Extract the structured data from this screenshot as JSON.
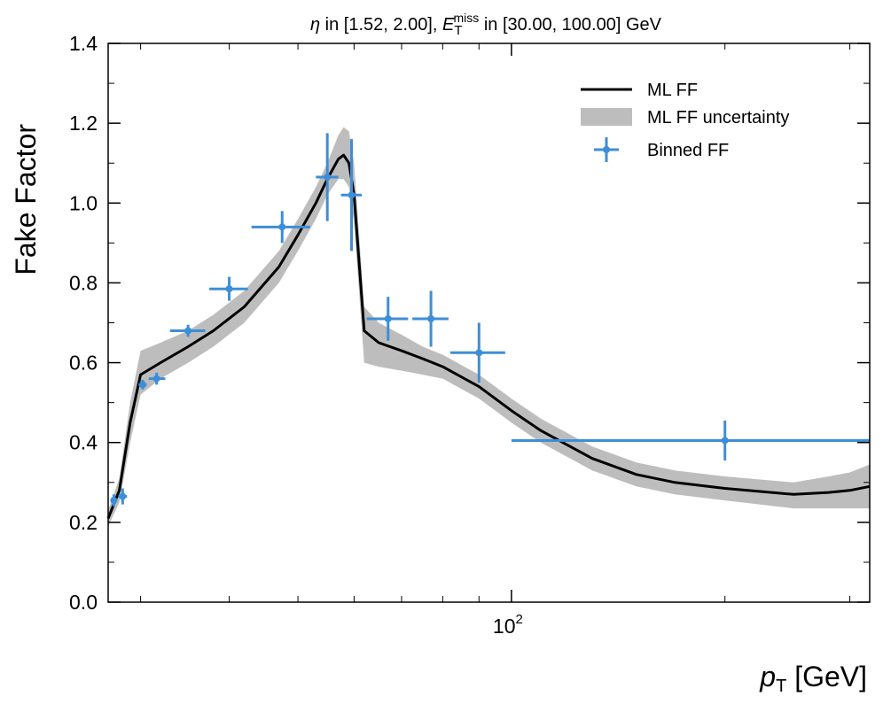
{
  "chart_data": {
    "type": "line",
    "title": {
      "eta_symbol": "η",
      "eta_range_text": " in [1.52, 2.00], ",
      "met_symbol": "E",
      "met_subscript": "T",
      "met_superscript": "miss",
      "met_range_text": " in [30.00, 100.00] GeV"
    },
    "xlabel": {
      "symbol": "p",
      "subscript": "T",
      "unit": " [GeV]"
    },
    "ylabel": "Fake Factor",
    "xscale": "log",
    "xlim": [
      27,
      320
    ],
    "ylim": [
      0.0,
      1.4
    ],
    "y_ticks": [
      "0.0",
      "0.2",
      "0.4",
      "0.6",
      "0.8",
      "1.0",
      "1.2",
      "1.4"
    ],
    "x_major_tick": {
      "base": "10",
      "exponent": "2",
      "value": 100
    },
    "x_minor_ticks": [
      30,
      40,
      50,
      60,
      70,
      80,
      90,
      200,
      300
    ],
    "legend": {
      "position": "top-right",
      "entries": [
        "ML FF",
        "ML FF uncertainty",
        "Binned FF"
      ]
    },
    "colors": {
      "ml_line": "#000000",
      "band": "#bdbdbd",
      "binned": "#3d8ed8"
    },
    "series": [
      {
        "name": "ML FF",
        "x": [
          27,
          28,
          29,
          30,
          32,
          35,
          38,
          42,
          47,
          50,
          53,
          55,
          57,
          58,
          59,
          60,
          62,
          65,
          70,
          75,
          80,
          90,
          100,
          110,
          130,
          150,
          170,
          200,
          250,
          280,
          300,
          320
        ],
        "y": [
          0.21,
          0.28,
          0.45,
          0.57,
          0.6,
          0.64,
          0.68,
          0.74,
          0.84,
          0.92,
          1.0,
          1.06,
          1.11,
          1.12,
          1.1,
          1.02,
          0.68,
          0.65,
          0.63,
          0.61,
          0.59,
          0.54,
          0.48,
          0.43,
          0.36,
          0.32,
          0.3,
          0.285,
          0.27,
          0.275,
          0.28,
          0.29
        ]
      },
      {
        "name": "ML FF uncertainty",
        "x": [
          27,
          28,
          29,
          30,
          32,
          35,
          38,
          42,
          47,
          50,
          53,
          55,
          57,
          58,
          59,
          60,
          62,
          65,
          70,
          75,
          80,
          90,
          100,
          110,
          130,
          150,
          170,
          200,
          250,
          280,
          300,
          320
        ],
        "lower": [
          0.19,
          0.25,
          0.4,
          0.52,
          0.56,
          0.6,
          0.64,
          0.7,
          0.8,
          0.88,
          0.96,
          1.02,
          1.06,
          1.06,
          1.04,
          0.95,
          0.6,
          0.59,
          0.58,
          0.57,
          0.56,
          0.51,
          0.45,
          0.4,
          0.33,
          0.29,
          0.27,
          0.255,
          0.235,
          0.235,
          0.235,
          0.235
        ],
        "upper": [
          0.23,
          0.31,
          0.5,
          0.63,
          0.65,
          0.68,
          0.72,
          0.78,
          0.88,
          0.96,
          1.04,
          1.1,
          1.17,
          1.19,
          1.18,
          1.1,
          0.74,
          0.7,
          0.67,
          0.64,
          0.62,
          0.57,
          0.51,
          0.46,
          0.39,
          0.35,
          0.33,
          0.315,
          0.3,
          0.315,
          0.325,
          0.345
        ]
      },
      {
        "name": "Binned FF",
        "points": [
          {
            "x": 27.5,
            "xlo": 27.2,
            "xhi": 27.8,
            "y": 0.255,
            "yerr": 0.015
          },
          {
            "x": 28.3,
            "xlo": 27.9,
            "xhi": 28.7,
            "y": 0.265,
            "yerr": 0.02
          },
          {
            "x": 30.2,
            "xlo": 29.8,
            "xhi": 30.6,
            "y": 0.545,
            "yerr": 0.012
          },
          {
            "x": 31.6,
            "xlo": 30.8,
            "xhi": 32.5,
            "y": 0.56,
            "yerr": 0.015
          },
          {
            "x": 35,
            "xlo": 33,
            "xhi": 37,
            "y": 0.68,
            "yerr": 0.015
          },
          {
            "x": 40,
            "xlo": 37.5,
            "xhi": 42.5,
            "y": 0.785,
            "yerr": 0.03
          },
          {
            "x": 47.5,
            "xlo": 43,
            "xhi": 52,
            "y": 0.94,
            "yerr": 0.04
          },
          {
            "x": 55,
            "xlo": 53,
            "xhi": 57,
            "y": 1.065,
            "yerr": 0.11
          },
          {
            "x": 59.5,
            "xlo": 57.5,
            "xhi": 61.5,
            "y": 1.02,
            "yerr": 0.14
          },
          {
            "x": 67,
            "xlo": 62.5,
            "xhi": 71.5,
            "y": 0.71,
            "yerr": 0.055
          },
          {
            "x": 77,
            "xlo": 72.5,
            "xhi": 81.5,
            "y": 0.71,
            "yerr": 0.07
          },
          {
            "x": 90,
            "xlo": 82,
            "xhi": 98,
            "y": 0.625,
            "yerr": 0.075
          },
          {
            "x": 200,
            "xlo": 100,
            "xhi": 320,
            "y": 0.405,
            "yerr": 0.05
          }
        ]
      }
    ]
  }
}
